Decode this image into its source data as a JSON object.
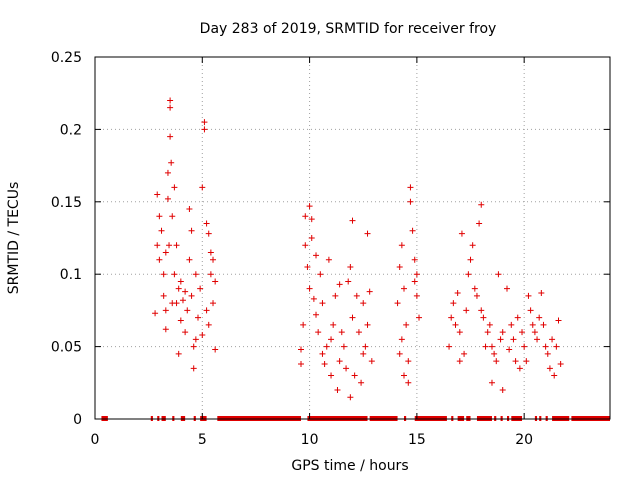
{
  "chart_data": {
    "type": "scatter",
    "title": "Day 283 of 2019, SRMTID for receiver froy",
    "xlabel": "GPS time / hours",
    "ylabel": "SRMTID / TECUs",
    "xlim": [
      0,
      24
    ],
    "ylim": [
      0,
      0.25
    ],
    "x_ticks": [
      0,
      5,
      10,
      15,
      20
    ],
    "x_tick_labels": [
      "0",
      "5",
      "10",
      "15",
      "20"
    ],
    "y_ticks": [
      0,
      0.05,
      0.1,
      0.15,
      0.2,
      0.25
    ],
    "y_tick_labels": [
      "0",
      "0.05",
      "0.1",
      "0.15",
      "0.2",
      "0.25"
    ],
    "grid": true,
    "marker": "+",
    "color": "#e00000",
    "series": [
      {
        "name": "SRMTID",
        "points": [
          [
            2.8,
            0.073
          ],
          [
            2.9,
            0.155
          ],
          [
            2.9,
            0.12
          ],
          [
            3.0,
            0.14
          ],
          [
            3.0,
            0.11
          ],
          [
            3.1,
            0.13
          ],
          [
            3.2,
            0.1
          ],
          [
            3.2,
            0.085
          ],
          [
            3.3,
            0.075
          ],
          [
            3.3,
            0.062
          ],
          [
            3.4,
            0.17
          ],
          [
            3.4,
            0.152
          ],
          [
            3.45,
            0.12
          ],
          [
            3.5,
            0.22
          ],
          [
            3.5,
            0.195
          ],
          [
            3.5,
            0.215
          ],
          [
            3.55,
            0.177
          ],
          [
            3.6,
            0.14
          ],
          [
            3.6,
            0.08
          ],
          [
            3.7,
            0.16
          ],
          [
            3.7,
            0.1
          ],
          [
            3.8,
            0.12
          ],
          [
            3.8,
            0.08
          ],
          [
            3.9,
            0.09
          ],
          [
            3.9,
            0.045
          ],
          [
            4.0,
            0.095
          ],
          [
            4.0,
            0.068
          ],
          [
            4.1,
            0.082
          ],
          [
            4.2,
            0.06
          ],
          [
            4.3,
            0.075
          ],
          [
            4.4,
            0.145
          ],
          [
            4.4,
            0.11
          ],
          [
            4.5,
            0.13
          ],
          [
            4.5,
            0.085
          ],
          [
            4.6,
            0.05
          ],
          [
            4.6,
            0.035
          ],
          [
            4.7,
            0.1
          ],
          [
            4.8,
            0.07
          ],
          [
            4.9,
            0.09
          ],
          [
            5.0,
            0.16
          ],
          [
            5.0,
            0.058
          ],
          [
            5.1,
            0.205
          ],
          [
            5.1,
            0.2
          ],
          [
            5.2,
            0.135
          ],
          [
            5.2,
            0.075
          ],
          [
            5.3,
            0.065
          ],
          [
            5.4,
            0.115
          ],
          [
            5.4,
            0.1
          ],
          [
            5.5,
            0.11
          ],
          [
            5.5,
            0.08
          ],
          [
            5.6,
            0.095
          ],
          [
            5.6,
            0.048
          ],
          [
            3.3,
            0.115
          ],
          [
            4.2,
            0.088
          ],
          [
            4.7,
            0.055
          ],
          [
            5.3,
            0.128
          ],
          [
            9.6,
            0.048
          ],
          [
            9.6,
            0.038
          ],
          [
            9.7,
            0.065
          ],
          [
            9.8,
            0.14
          ],
          [
            9.8,
            0.12
          ],
          [
            9.9,
            0.105
          ],
          [
            10.0,
            0.09
          ],
          [
            10.0,
            0.147
          ],
          [
            10.1,
            0.138
          ],
          [
            10.1,
            0.125
          ],
          [
            10.2,
            0.083
          ],
          [
            10.3,
            0.072
          ],
          [
            10.4,
            0.06
          ],
          [
            10.5,
            0.1
          ],
          [
            10.6,
            0.045
          ],
          [
            10.6,
            0.08
          ],
          [
            10.7,
            0.038
          ],
          [
            10.8,
            0.05
          ],
          [
            10.9,
            0.11
          ],
          [
            11.0,
            0.03
          ],
          [
            11.0,
            0.055
          ],
          [
            11.1,
            0.065
          ],
          [
            11.2,
            0.085
          ],
          [
            11.3,
            0.02
          ],
          [
            11.4,
            0.04
          ],
          [
            11.5,
            0.06
          ],
          [
            11.6,
            0.05
          ],
          [
            11.7,
            0.035
          ],
          [
            11.8,
            0.095
          ],
          [
            11.9,
            0.105
          ],
          [
            12.0,
            0.137
          ],
          [
            12.0,
            0.07
          ],
          [
            12.1,
            0.03
          ],
          [
            12.2,
            0.085
          ],
          [
            12.3,
            0.06
          ],
          [
            12.4,
            0.025
          ],
          [
            12.5,
            0.08
          ],
          [
            12.6,
            0.05
          ],
          [
            12.7,
            0.128
          ],
          [
            12.7,
            0.065
          ],
          [
            12.8,
            0.088
          ],
          [
            12.9,
            0.04
          ],
          [
            10.3,
            0.113
          ],
          [
            11.4,
            0.093
          ],
          [
            11.9,
            0.015
          ],
          [
            12.5,
            0.045
          ],
          [
            14.1,
            0.08
          ],
          [
            14.2,
            0.105
          ],
          [
            14.2,
            0.045
          ],
          [
            14.3,
            0.12
          ],
          [
            14.4,
            0.09
          ],
          [
            14.4,
            0.03
          ],
          [
            14.5,
            0.065
          ],
          [
            14.6,
            0.025
          ],
          [
            14.7,
            0.16
          ],
          [
            14.7,
            0.15
          ],
          [
            14.8,
            0.13
          ],
          [
            14.9,
            0.11
          ],
          [
            14.9,
            0.095
          ],
          [
            15.0,
            0.1
          ],
          [
            15.0,
            0.085
          ],
          [
            15.1,
            0.07
          ],
          [
            14.3,
            0.055
          ],
          [
            14.6,
            0.04
          ],
          [
            16.5,
            0.05
          ],
          [
            16.6,
            0.07
          ],
          [
            16.7,
            0.08
          ],
          [
            16.8,
            0.065
          ],
          [
            16.9,
            0.087
          ],
          [
            17.0,
            0.06
          ],
          [
            17.1,
            0.128
          ],
          [
            17.2,
            0.045
          ],
          [
            17.3,
            0.075
          ],
          [
            17.4,
            0.1
          ],
          [
            17.5,
            0.11
          ],
          [
            17.6,
            0.12
          ],
          [
            17.7,
            0.09
          ],
          [
            17.8,
            0.085
          ],
          [
            17.9,
            0.135
          ],
          [
            18.0,
            0.148
          ],
          [
            18.0,
            0.075
          ],
          [
            18.1,
            0.07
          ],
          [
            18.2,
            0.05
          ],
          [
            18.3,
            0.06
          ],
          [
            18.4,
            0.065
          ],
          [
            18.5,
            0.05
          ],
          [
            18.6,
            0.045
          ],
          [
            18.7,
            0.04
          ],
          [
            18.8,
            0.1
          ],
          [
            18.9,
            0.055
          ],
          [
            19.0,
            0.06
          ],
          [
            19.2,
            0.09
          ],
          [
            19.3,
            0.048
          ],
          [
            19.4,
            0.065
          ],
          [
            19.5,
            0.055
          ],
          [
            19.6,
            0.04
          ],
          [
            19.7,
            0.07
          ],
          [
            19.8,
            0.035
          ],
          [
            19.9,
            0.06
          ],
          [
            20.0,
            0.05
          ],
          [
            20.1,
            0.04
          ],
          [
            20.2,
            0.085
          ],
          [
            20.3,
            0.075
          ],
          [
            20.4,
            0.065
          ],
          [
            20.5,
            0.06
          ],
          [
            20.6,
            0.055
          ],
          [
            20.7,
            0.07
          ],
          [
            20.8,
            0.087
          ],
          [
            20.9,
            0.065
          ],
          [
            21.0,
            0.05
          ],
          [
            21.1,
            0.045
          ],
          [
            21.2,
            0.035
          ],
          [
            21.3,
            0.055
          ],
          [
            21.4,
            0.03
          ],
          [
            21.5,
            0.05
          ],
          [
            21.6,
            0.068
          ],
          [
            21.7,
            0.038
          ],
          [
            18.5,
            0.025
          ],
          [
            19.0,
            0.02
          ],
          [
            17.0,
            0.04
          ]
        ],
        "zero_segments": [
          [
            0.3,
            0.6
          ],
          [
            2.6,
            2.7
          ],
          [
            2.9,
            3.0
          ],
          [
            3.1,
            3.3
          ],
          [
            3.6,
            3.7
          ],
          [
            4.0,
            4.2
          ],
          [
            4.6,
            4.7
          ],
          [
            4.9,
            5.2
          ],
          [
            5.7,
            9.6
          ],
          [
            9.9,
            12.7
          ],
          [
            12.8,
            14.1
          ],
          [
            14.4,
            14.5
          ],
          [
            14.9,
            16.4
          ],
          [
            16.6,
            16.7
          ],
          [
            16.9,
            17.2
          ],
          [
            17.3,
            17.5
          ],
          [
            17.8,
            18.5
          ],
          [
            18.6,
            18.7
          ],
          [
            18.9,
            19.0
          ],
          [
            19.2,
            19.3
          ],
          [
            19.4,
            19.9
          ],
          [
            20.5,
            20.6
          ],
          [
            20.7,
            20.8
          ],
          [
            21.0,
            21.1
          ],
          [
            21.3,
            22.1
          ],
          [
            22.2,
            24.0
          ]
        ]
      }
    ]
  }
}
